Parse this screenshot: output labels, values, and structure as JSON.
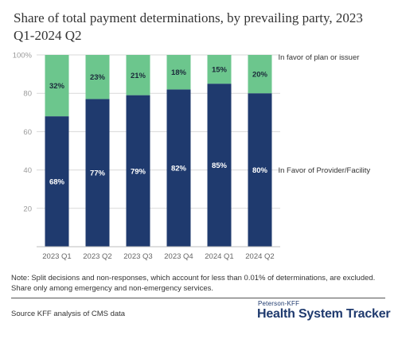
{
  "header": {
    "title": "Share of total payment determinations, by prevailing party, 2023 Q1-2024 Q2"
  },
  "chart_data": {
    "type": "bar",
    "stacked": true,
    "categories": [
      "2023 Q1",
      "2023 Q2",
      "2023 Q3",
      "2023 Q4",
      "2024 Q1",
      "2024 Q2"
    ],
    "series": [
      {
        "name": "In Favor of Provider/Facility",
        "values": [
          68,
          77,
          79,
          82,
          85,
          80
        ],
        "labels": [
          "68%",
          "77%",
          "79%",
          "82%",
          "85%",
          "80%"
        ],
        "color": "#1f3a6e",
        "label_color": "#ffffff"
      },
      {
        "name": "In favor of plan or issuer",
        "values": [
          32,
          23,
          21,
          18,
          15,
          20
        ],
        "labels": [
          "32%",
          "23%",
          "21%",
          "18%",
          "15%",
          "20%"
        ],
        "color": "#6cc68d",
        "label_color": "#1b2a3a"
      }
    ],
    "y_ticks": [
      "20",
      "40",
      "60",
      "80",
      "100%"
    ],
    "y_tick_values": [
      20,
      40,
      60,
      80,
      100
    ],
    "ylim": [
      0,
      100
    ],
    "grid": true,
    "legend_placement": "right of last bar"
  },
  "footer": {
    "note": "Note: Split decisions and non-responses, which account for less than 0.01% of determinations, are excluded. Share only among emergency and non-emergency services.",
    "source": "Source KFF analysis of CMS data",
    "brand_small": "Peterson-KFF",
    "brand_large": "Health System Tracker"
  },
  "colors": {
    "provider": "#1f3a6e",
    "plan": "#6cc68d",
    "grid": "#d9d9d9",
    "brand": "#1f3a6e"
  }
}
